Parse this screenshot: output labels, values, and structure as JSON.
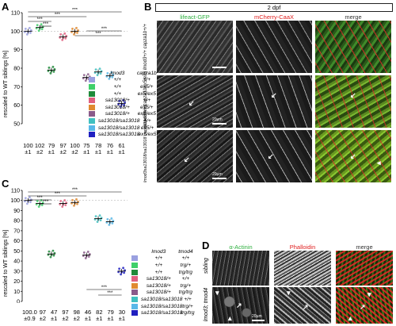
{
  "panels": {
    "A": {
      "label": "A",
      "ylabel": "rescaled to WT siblings [%]",
      "chart_data": {
        "type": "scatter",
        "ylim": [
          50,
          110
        ],
        "yticks": [
          50,
          60,
          70,
          80,
          90,
          100,
          110
        ],
        "categories": [
          "+/+;+/+",
          "+/+;ex5/+",
          "+/+;ex5/ex5",
          "sa13018/+;+/+",
          "sa13018/+;ex5/+",
          "sa13018/+;ex5/ex5",
          "sa13018/sa13018;+/+",
          "sa13018/sa13018;ex5/+",
          "sa13018/sa13018;ex5/ex5"
        ],
        "means": [
          100,
          102,
          79,
          97,
          100,
          75,
          78,
          76,
          61
        ],
        "sem_labels": [
          "±1",
          "±2",
          "±1",
          "±2",
          "±2",
          "±1",
          "±1",
          "±1",
          "±1"
        ],
        "mean_labels": [
          "100",
          "102",
          "79",
          "97",
          "100",
          "75",
          "78",
          "76",
          "61"
        ],
        "colors": [
          "#9aa0e0",
          "#3fd06a",
          "#1f8a3a",
          "#e06080",
          "#e08a30",
          "#8a5a8a",
          "#40c0c0",
          "#58b8e8",
          "#2020c0"
        ],
        "significance": [
          "***",
          "***",
          "***",
          "***",
          "***",
          "***"
        ]
      },
      "legend": {
        "headers": [
          "lmod3",
          "capza1b"
        ],
        "rows": [
          [
            "+/+",
            "+/+"
          ],
          [
            "+/+",
            "ex5/+"
          ],
          [
            "+/+",
            "ex5/ex5"
          ],
          [
            "sa13018/+",
            "+/+"
          ],
          [
            "sa13018/+",
            "ex5/+"
          ],
          [
            "sa13018/+",
            "ex5/ex5"
          ],
          [
            "sa13018/sa13018",
            "+/+"
          ],
          [
            "sa13018/sa13018",
            "ex5/+"
          ],
          [
            "sa13018/sa13018",
            "ex5/ex5"
          ]
        ]
      }
    },
    "B": {
      "label": "B",
      "stage": "2 dpf",
      "columns": [
        "lifeact-GFP",
        "mCherry-CaaX",
        "merge"
      ],
      "rows": [
        "lmod3+/+ capza1b+/+",
        "lmod3+/+ capza1bex5/ex5",
        "lmod3sa13018/sa13018 capza1bex5/ex5"
      ],
      "scale": "20µm"
    },
    "C": {
      "label": "C",
      "ylabel": "rescaled to WT siblings [%]",
      "chart_data": {
        "type": "scatter",
        "ylim": [
          0,
          110
        ],
        "yticks": [
          0,
          10,
          20,
          30,
          40,
          50,
          60,
          70,
          80,
          90,
          100,
          110
        ],
        "categories": [
          "+/+;+/+",
          "+/+;trg/+",
          "+/+;trg/trg",
          "sa13018/+;+/+",
          "sa13018/+;trg/+",
          "sa13018/+;trg/trg",
          "sa13018/sa13018;+/+",
          "sa13018/sa13018;trg/+",
          "sa13018/sa13018;trg/trg"
        ],
        "means": [
          100.0,
          97,
          47,
          97,
          98,
          46,
          82,
          79,
          30
        ],
        "mean_labels": [
          "100.0",
          "97",
          "47",
          "97",
          "98",
          "46",
          "82",
          "79",
          "30"
        ],
        "sem_labels": [
          "±0.9",
          "±2",
          "±1",
          "±2",
          "±2",
          "±1",
          "±1",
          "±1",
          "±1"
        ],
        "colors": [
          "#9aa0e0",
          "#3fd06a",
          "#1f8a3a",
          "#e06080",
          "#e08a30",
          "#8a5a8a",
          "#40c0c0",
          "#58b8e8",
          "#2020c0"
        ],
        "significance": [
          "***",
          "***",
          "***",
          "***",
          "***",
          "***"
        ]
      },
      "legend": {
        "headers": [
          "lmod3",
          "tmod4"
        ],
        "rows": [
          [
            "+/+",
            "+/+"
          ],
          [
            "+/+",
            "trg/+"
          ],
          [
            "+/+",
            "trg/trg"
          ],
          [
            "sa13018/+",
            "+/+"
          ],
          [
            "sa13018/+",
            "trg/+"
          ],
          [
            "sa13018/+",
            "trg/trg"
          ],
          [
            "sa13018/sa13018",
            "+/+"
          ],
          [
            "sa13018/sa13018",
            "trg/+"
          ],
          [
            "sa13018/sa13018",
            "trg/trg"
          ]
        ]
      }
    },
    "D": {
      "label": "D",
      "columns": [
        "α-Actinin",
        "Phalloidin",
        "merge"
      ],
      "rows": [
        "sibling",
        "lmod3; tmod4"
      ],
      "scale": "20µm"
    }
  }
}
